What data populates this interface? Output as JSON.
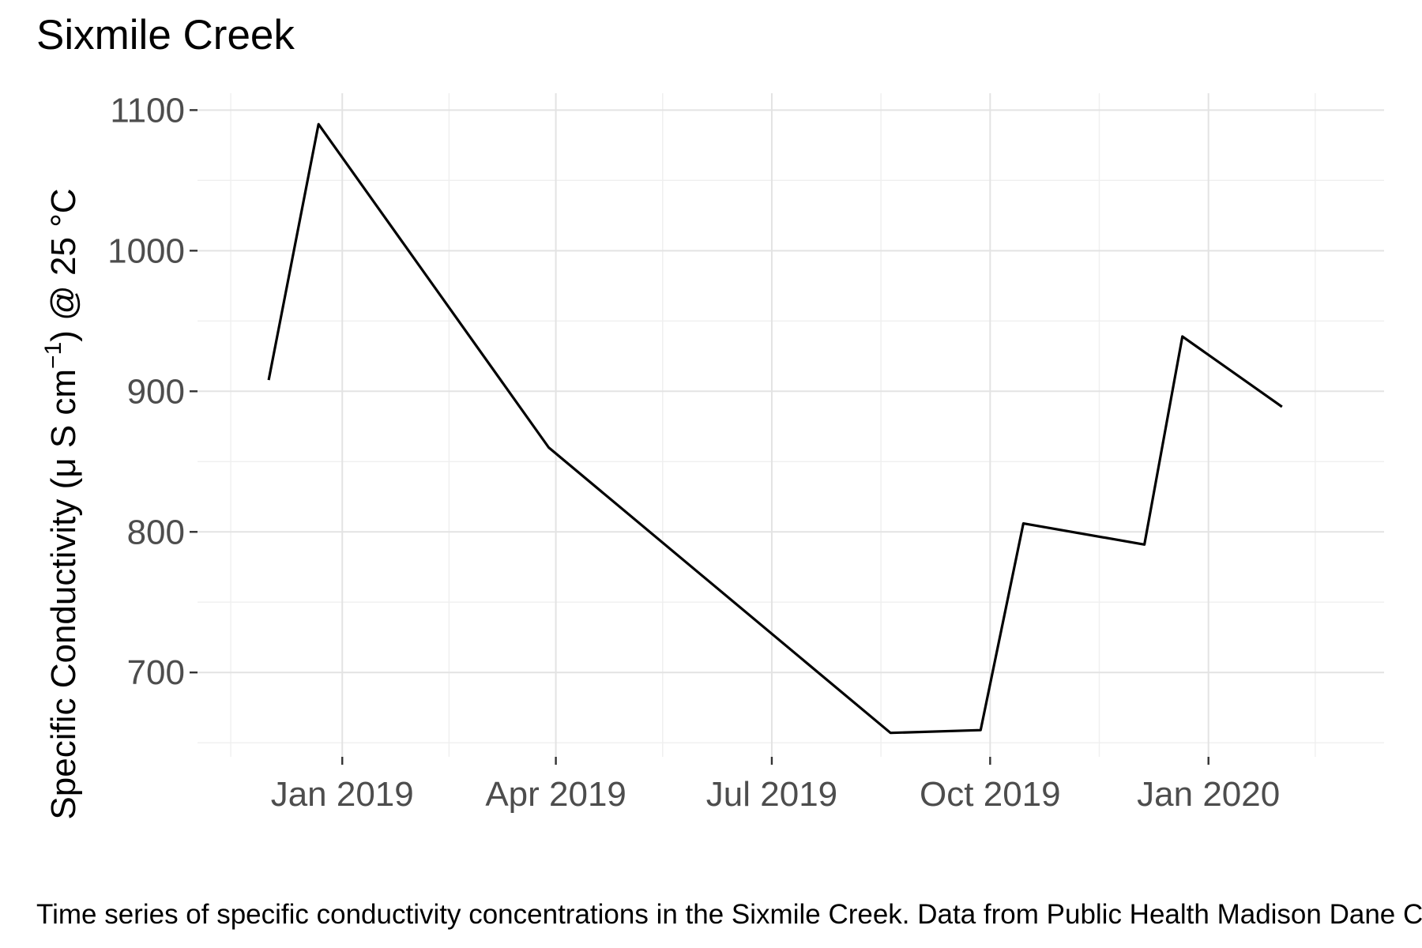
{
  "chart_data": {
    "type": "line",
    "title": "Sixmile Creek",
    "xlabel": "",
    "ylabel": "Specific Conductivity (μ S cm",
    "ylabel_superscript": "−1",
    "ylabel_tail": ") @ 25 °C",
    "caption": "Time series of specific conductivity concentrations in the Sixmile Creek. Data from Public Health Madison Dane County.",
    "x_axis": {
      "type": "date",
      "range": [
        "2018-11-01",
        "2020-03-15"
      ],
      "major_ticks": [
        "2019-01-01",
        "2019-04-01",
        "2019-07-01",
        "2019-10-01",
        "2020-01-01"
      ],
      "major_tick_labels": [
        "Jan 2019",
        "Apr 2019",
        "Jul 2019",
        "Oct 2019",
        "Jan 2020"
      ],
      "minor_ticks": [
        "2018-11-15",
        "2019-02-15",
        "2019-05-16",
        "2019-08-16",
        "2019-11-16",
        "2020-02-15"
      ]
    },
    "y_axis": {
      "range": [
        640,
        1112
      ],
      "major_ticks": [
        700,
        800,
        900,
        1000,
        1100
      ],
      "tick_labels": [
        "700",
        "800",
        "900",
        "1000",
        "1100"
      ],
      "minor_ticks": [
        650,
        750,
        850,
        950,
        1050
      ]
    },
    "grid": true,
    "series": [
      {
        "color": "#000000",
        "x": [
          "2018-12-01",
          "2018-12-22",
          "2019-03-29",
          "2019-08-20",
          "2019-09-27",
          "2019-10-15",
          "2019-12-05",
          "2019-12-21",
          "2020-02-01"
        ],
        "values": [
          908,
          1090,
          860,
          657,
          659,
          806,
          791,
          939,
          889
        ]
      }
    ]
  }
}
